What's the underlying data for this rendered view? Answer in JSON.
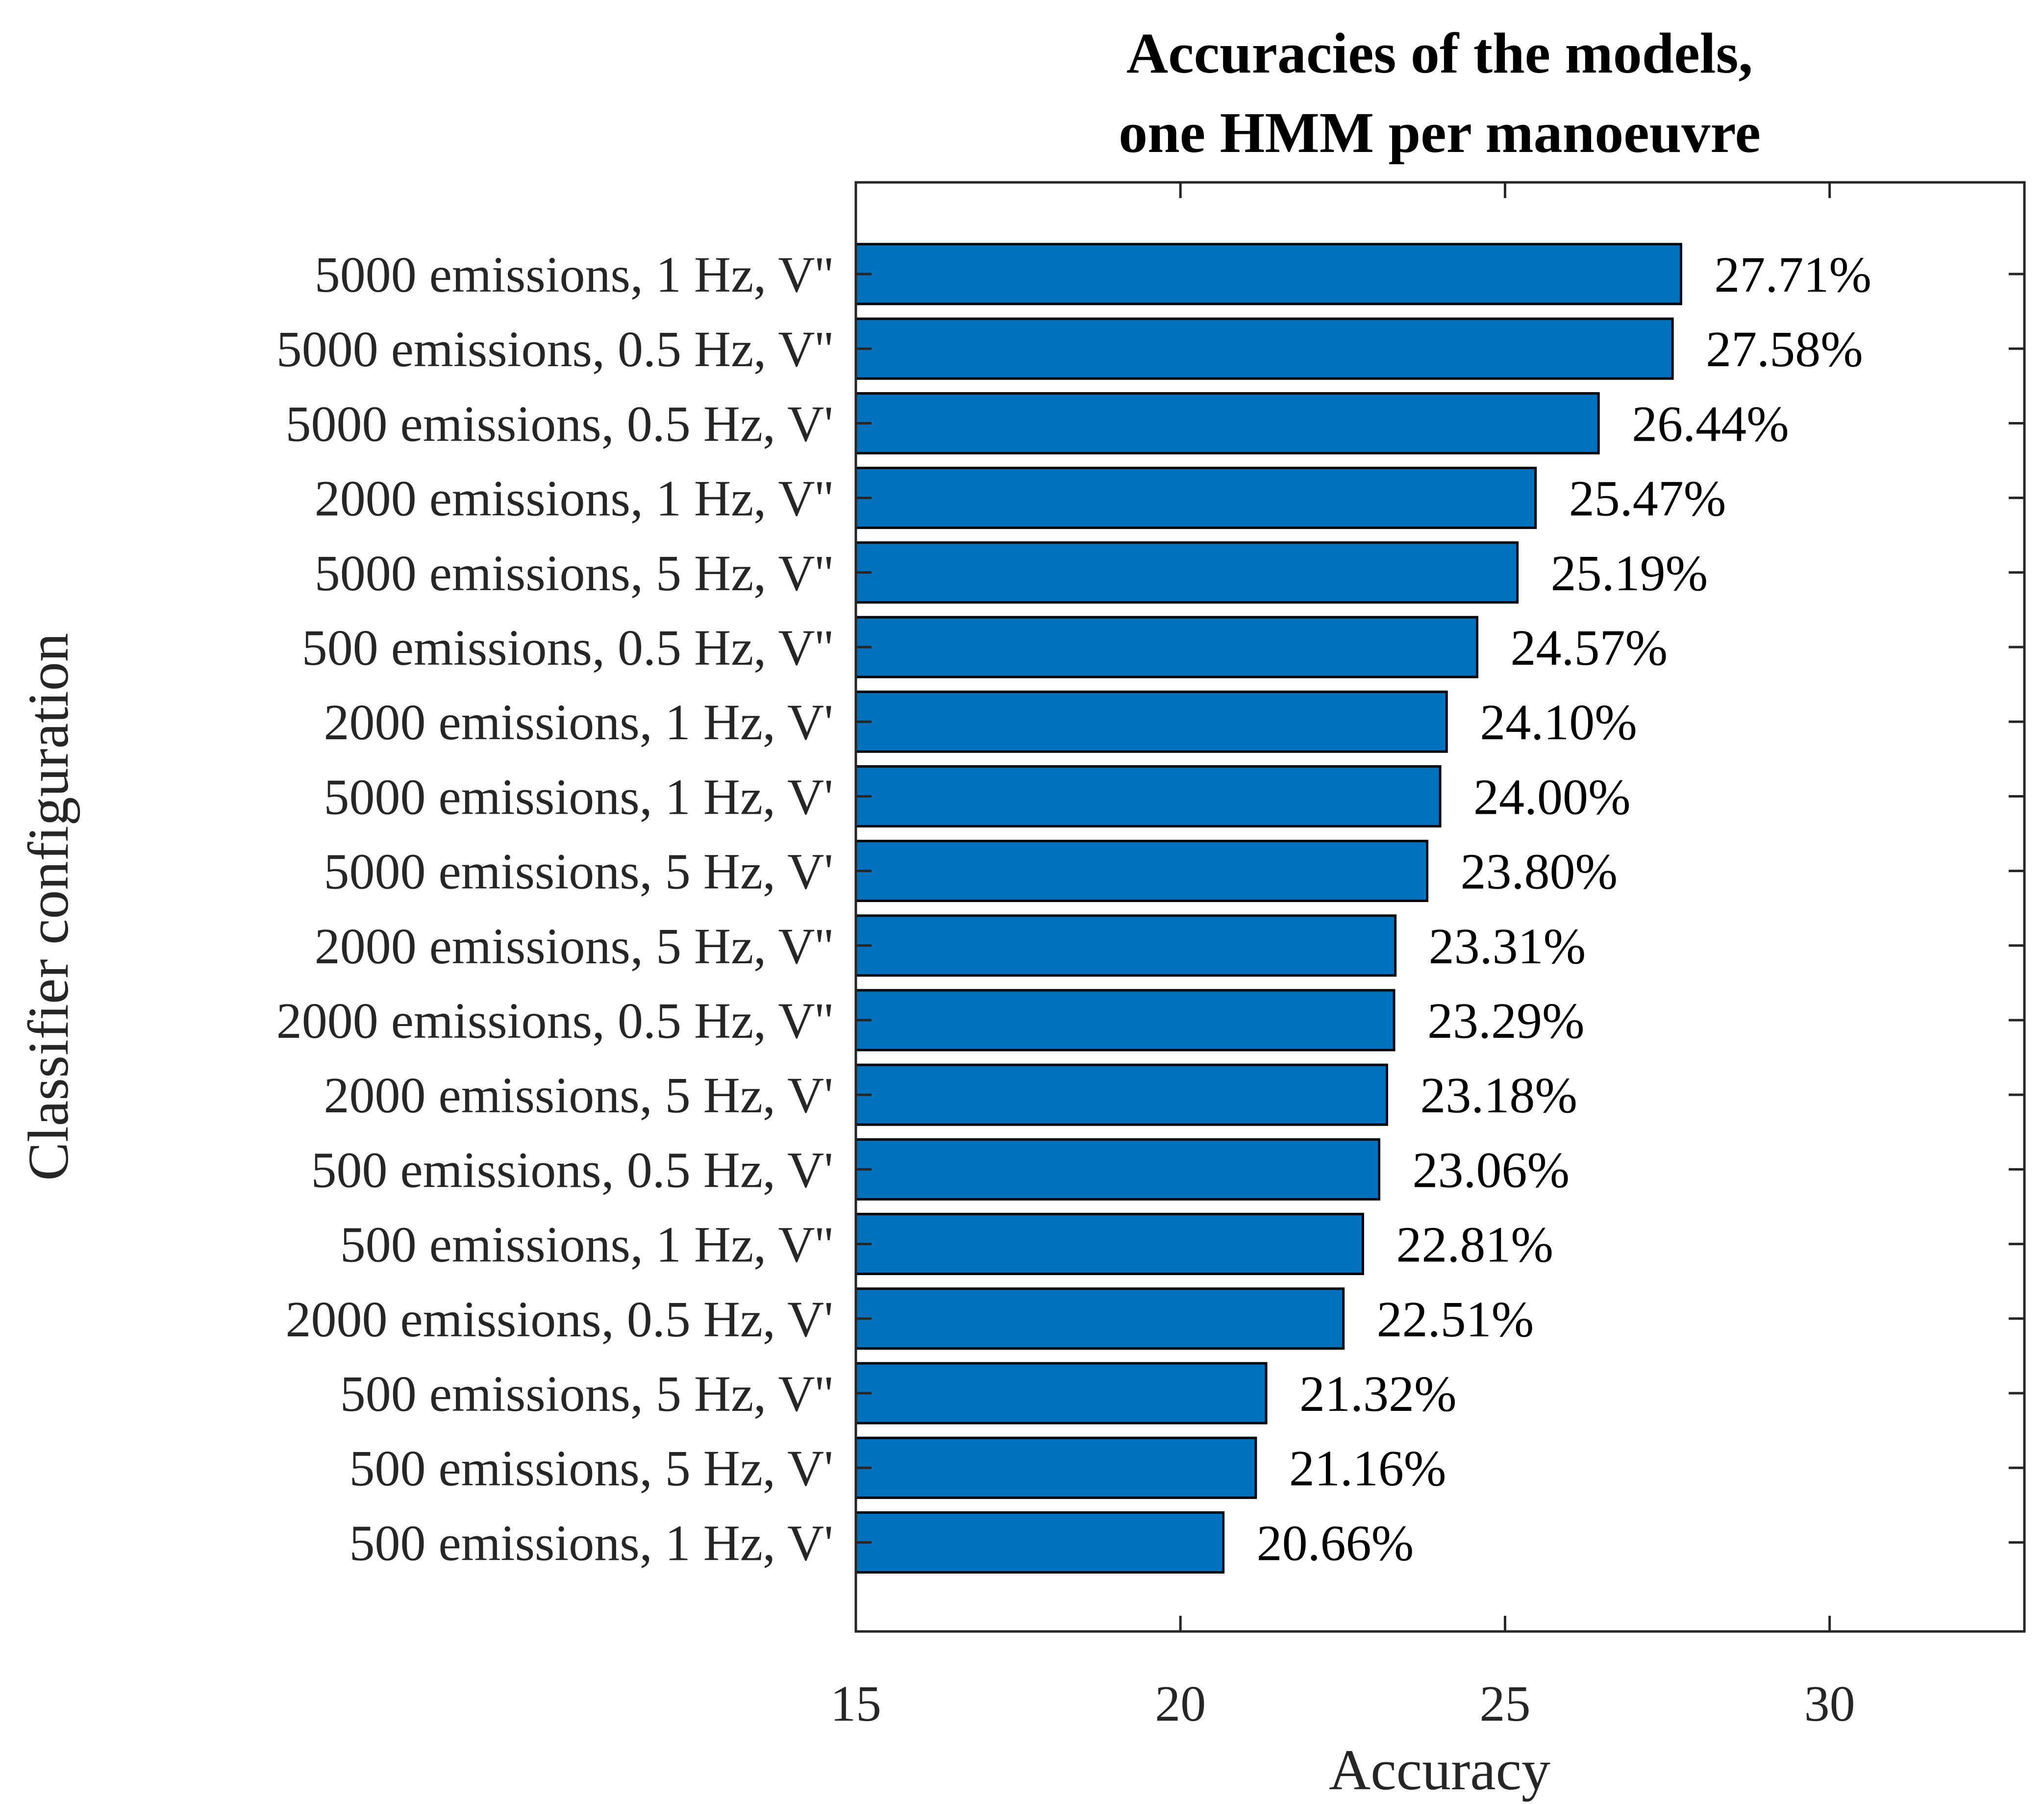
{
  "chart_data": {
    "type": "bar",
    "orientation": "horizontal",
    "title": [
      "Accuracies of the models,",
      "one HMM per manoeuvre"
    ],
    "xlabel": "Accuracy",
    "ylabel": "Classifier configuration",
    "xlim": [
      15,
      33
    ],
    "xticks": [
      15,
      20,
      25,
      30
    ],
    "grid": false,
    "bar_color": "#0072BD",
    "bar_edge_color": "#000000",
    "categories": [
      "5000 emissions, 1 Hz, V''",
      "5000 emissions, 0.5 Hz, V''",
      "5000 emissions, 0.5 Hz, V'",
      "2000 emissions, 1 Hz, V''",
      "5000 emissions, 5 Hz, V''",
      "500 emissions, 0.5 Hz, V''",
      "2000 emissions, 1 Hz, V'",
      "5000 emissions, 1 Hz, V'",
      "5000 emissions, 5 Hz, V'",
      "2000 emissions, 5 Hz, V''",
      "2000 emissions, 0.5 Hz, V''",
      "2000 emissions, 5 Hz, V'",
      "500 emissions, 0.5 Hz, V'",
      "500 emissions, 1 Hz, V''",
      "2000 emissions, 0.5 Hz, V'",
      "500 emissions, 5 Hz, V''",
      "500 emissions, 5 Hz, V'",
      "500 emissions, 1 Hz, V'"
    ],
    "values": [
      27.71,
      27.58,
      26.44,
      25.47,
      25.19,
      24.57,
      24.1,
      24.0,
      23.8,
      23.31,
      23.29,
      23.18,
      23.06,
      22.81,
      22.51,
      21.32,
      21.16,
      20.66
    ],
    "data_labels": [
      "27.71%",
      "27.58%",
      "26.44%",
      "25.47%",
      "25.19%",
      "24.57%",
      "24.10%",
      "24.00%",
      "23.80%",
      "23.31%",
      "23.29%",
      "23.18%",
      "23.06%",
      "22.81%",
      "22.51%",
      "21.32%",
      "21.16%",
      "20.66%"
    ]
  }
}
